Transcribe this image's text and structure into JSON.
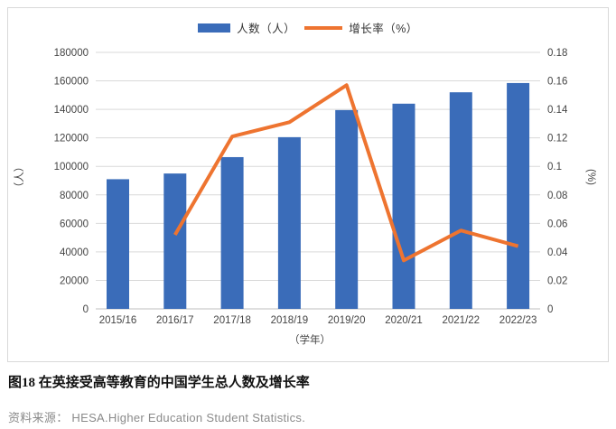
{
  "chart_data": {
    "type": "bar+line-combo",
    "categories": [
      "2015/16",
      "2016/17",
      "2017/18",
      "2018/19",
      "2019/20",
      "2020/21",
      "2021/22",
      "2022/23"
    ],
    "series": [
      {
        "name": "人数（人）",
        "type": "bar",
        "axis": "left",
        "color": "#3a6cb9",
        "values": [
          91000,
          95000,
          106500,
          120500,
          139500,
          144000,
          152000,
          158500
        ]
      },
      {
        "name": "增长率（%）",
        "type": "line",
        "axis": "right",
        "color": "#ee7430",
        "values": [
          null,
          0.052,
          0.121,
          0.131,
          0.157,
          0.034,
          0.055,
          0.044
        ]
      }
    ],
    "left_axis": {
      "title": "（人）",
      "min": 0,
      "max": 180000,
      "step": 20000
    },
    "right_axis": {
      "title": "(%)",
      "min": 0,
      "max": 0.18,
      "step": 0.02
    },
    "xlabel": "（学年）",
    "grid": true,
    "legend_position": "top-center",
    "grid_color": "#d9d9d9",
    "axis_line_color": "#bfbfbf",
    "tick_label_color": "#444444"
  },
  "caption": {
    "title": "图18 在英接受高等教育的中国学生总人数及增长率",
    "source": "资料来源： HESA.Higher Education Student Statistics."
  }
}
